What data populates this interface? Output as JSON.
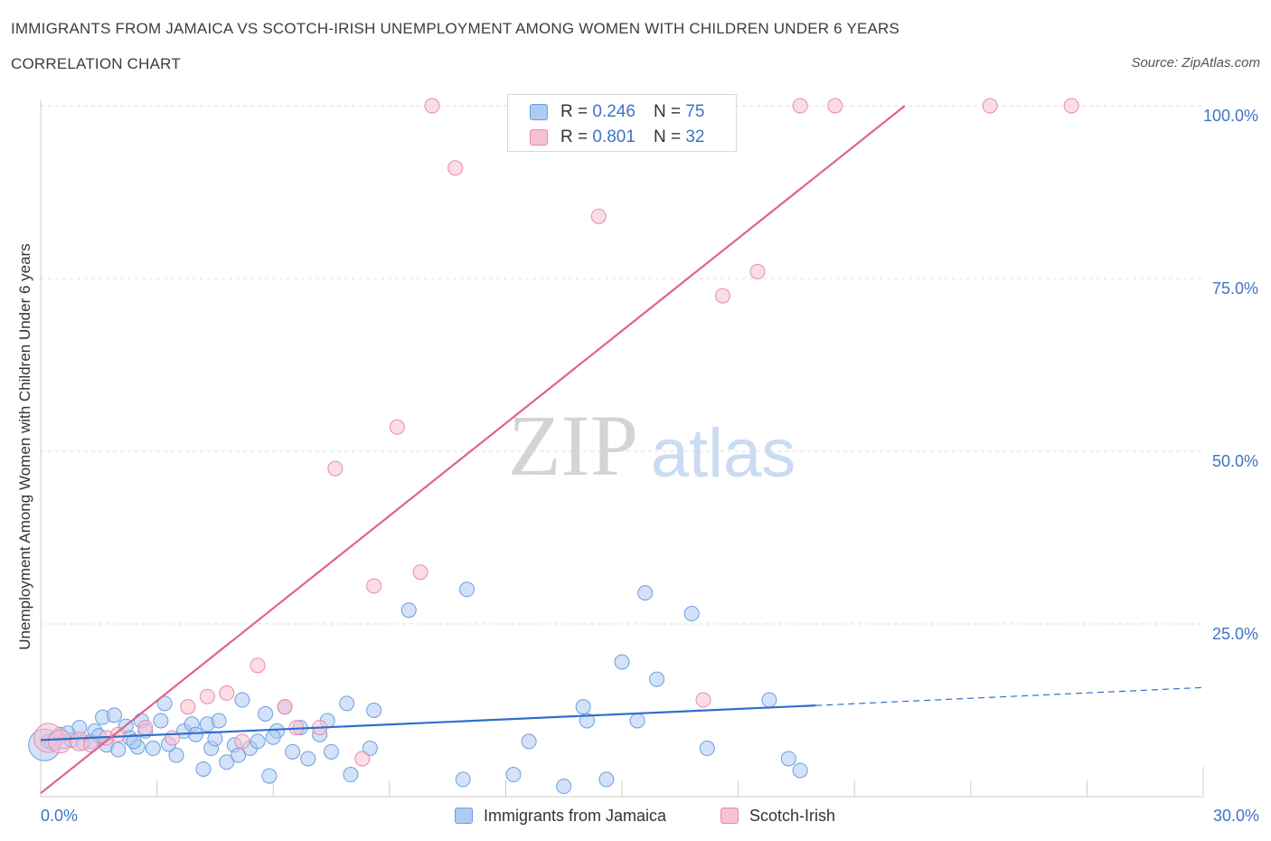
{
  "title": "IMMIGRANTS FROM JAMAICA VS SCOTCH-IRISH UNEMPLOYMENT AMONG WOMEN WITH CHILDREN UNDER 6 YEARS",
  "subtitle": "CORRELATION CHART",
  "source": "Source: ZipAtlas.com",
  "watermark": {
    "zip": "ZIP",
    "atlas": "atlas"
  },
  "colors": {
    "blue_fill": "#aecbf2",
    "blue_stroke": "#6a9fe0",
    "blue_line": "#2f6fcc",
    "pink_fill": "#f7c1d3",
    "pink_stroke": "#e88aab",
    "pink_line": "#e0628e",
    "axis_label": "#3d74c6",
    "grid": "#dddddd"
  },
  "legend_top": {
    "rows": [
      {
        "r_label": "R =",
        "r_value": "0.246",
        "n_label": "N =",
        "n_value": "75",
        "color": "blue"
      },
      {
        "r_label": "R =",
        "r_value": "0.801",
        "n_label": "N =",
        "n_value": "32",
        "color": "pink"
      }
    ]
  },
  "legend_bottom": [
    {
      "label": "Immigrants from Jamaica",
      "color": "blue"
    },
    {
      "label": "Scotch-Irish",
      "color": "pink"
    }
  ],
  "chart_data": {
    "type": "scatter",
    "ylabel": "Unemployment Among Women with Children Under 6 years",
    "x_tick_labels": [
      "0.0%",
      "30.0%"
    ],
    "y_tick_labels": [
      "25.0%",
      "50.0%",
      "75.0%",
      "100.0%"
    ],
    "xlim": [
      0,
      30
    ],
    "ylim": [
      0,
      100
    ],
    "y_gridlines": [
      25,
      50,
      75,
      100
    ],
    "legend_position": "top-center",
    "series": [
      {
        "name": "Immigrants from Jamaica",
        "color": "blue",
        "trend": {
          "x0": 0,
          "y0": 8.2,
          "x1": 20,
          "y1": 13.2,
          "dashed_to_x": 30,
          "dashed_to_y": 15.8
        },
        "points": [
          [
            0.1,
            7.5,
            2.2
          ],
          [
            0.3,
            7.8,
            1
          ],
          [
            0.4,
            8.5,
            1
          ],
          [
            0.5,
            9.0,
            1
          ],
          [
            0.6,
            8.0,
            1
          ],
          [
            0.8,
            8.2,
            1
          ],
          [
            1.0,
            10.0,
            1
          ],
          [
            1.1,
            7.8,
            1
          ],
          [
            1.3,
            8.0,
            1
          ],
          [
            1.4,
            9.5,
            1
          ],
          [
            1.6,
            11.5,
            1
          ],
          [
            1.7,
            7.5,
            1
          ],
          [
            1.9,
            11.8,
            1
          ],
          [
            2.0,
            6.8,
            1
          ],
          [
            2.2,
            10.2,
            1
          ],
          [
            2.3,
            8.5,
            1
          ],
          [
            2.5,
            7.2,
            1
          ],
          [
            2.6,
            11.0,
            1
          ],
          [
            2.7,
            9.5,
            1
          ],
          [
            2.9,
            7.0,
            1
          ],
          [
            3.1,
            11.0,
            1
          ],
          [
            3.2,
            13.5,
            1
          ],
          [
            3.5,
            6.0,
            1
          ],
          [
            3.7,
            9.5,
            1
          ],
          [
            3.9,
            10.5,
            1
          ],
          [
            4.0,
            9.0,
            1
          ],
          [
            4.2,
            4.0,
            1
          ],
          [
            4.3,
            10.5,
            1
          ],
          [
            4.4,
            7.0,
            1
          ],
          [
            4.6,
            11.0,
            1
          ],
          [
            4.8,
            5.0,
            1
          ],
          [
            5.0,
            7.5,
            1
          ],
          [
            5.1,
            6.0,
            1
          ],
          [
            5.2,
            14.0,
            1
          ],
          [
            5.4,
            7.0,
            1
          ],
          [
            5.6,
            8.0,
            1
          ],
          [
            5.8,
            12.0,
            1
          ],
          [
            5.9,
            3.0,
            1
          ],
          [
            6.1,
            9.5,
            1
          ],
          [
            6.3,
            13.0,
            1
          ],
          [
            6.5,
            6.5,
            1
          ],
          [
            6.7,
            10.0,
            1
          ],
          [
            6.9,
            5.5,
            1
          ],
          [
            7.2,
            9.0,
            1
          ],
          [
            7.4,
            11.0,
            1
          ],
          [
            7.5,
            6.5,
            1
          ],
          [
            7.9,
            13.5,
            1
          ],
          [
            8.0,
            3.2,
            1
          ],
          [
            8.5,
            7.0,
            1
          ],
          [
            8.6,
            12.5,
            1
          ],
          [
            9.5,
            27.0,
            1
          ],
          [
            10.9,
            2.5,
            1
          ],
          [
            11.0,
            30.0,
            1
          ],
          [
            12.2,
            3.2,
            1
          ],
          [
            12.6,
            8.0,
            1
          ],
          [
            13.5,
            1.5,
            1
          ],
          [
            14.0,
            13.0,
            1
          ],
          [
            14.1,
            11.0,
            1
          ],
          [
            14.6,
            2.5,
            1
          ],
          [
            15.0,
            19.5,
            1
          ],
          [
            15.4,
            11.0,
            1
          ],
          [
            15.9,
            17.0,
            1
          ],
          [
            15.6,
            29.5,
            1
          ],
          [
            16.8,
            26.5,
            1
          ],
          [
            17.2,
            7.0,
            1
          ],
          [
            18.8,
            14.0,
            1
          ],
          [
            19.3,
            5.5,
            1
          ],
          [
            19.6,
            3.8,
            1
          ],
          [
            0.2,
            8.0,
            1
          ],
          [
            0.7,
            9.2,
            1
          ],
          [
            1.5,
            8.8,
            1
          ],
          [
            2.4,
            8.0,
            1
          ],
          [
            3.3,
            7.6,
            1
          ],
          [
            4.5,
            8.4,
            1
          ],
          [
            6.0,
            8.6,
            1
          ]
        ]
      },
      {
        "name": "Scotch-Irish",
        "color": "pink",
        "trend": {
          "x0": 0,
          "y0": 0.5,
          "x1": 22.3,
          "y1": 100
        },
        "points": [
          [
            0.2,
            8.5,
            2.0
          ],
          [
            0.5,
            8.0,
            1.6
          ],
          [
            1.0,
            8.0,
            1.3
          ],
          [
            1.3,
            7.5,
            1
          ],
          [
            1.7,
            8.5,
            1
          ],
          [
            2.0,
            9.0,
            1
          ],
          [
            2.7,
            10.0,
            1
          ],
          [
            3.4,
            8.5,
            1
          ],
          [
            3.8,
            13.0,
            1
          ],
          [
            4.3,
            14.5,
            1
          ],
          [
            4.8,
            15.0,
            1
          ],
          [
            5.2,
            8.0,
            1
          ],
          [
            5.6,
            19.0,
            1
          ],
          [
            6.3,
            13.0,
            1
          ],
          [
            6.6,
            10.0,
            1
          ],
          [
            7.2,
            10.0,
            1
          ],
          [
            7.6,
            47.5,
            1
          ],
          [
            8.3,
            5.5,
            1
          ],
          [
            8.6,
            30.5,
            1
          ],
          [
            9.2,
            53.5,
            1
          ],
          [
            9.8,
            32.5,
            1
          ],
          [
            10.1,
            100,
            1
          ],
          [
            10.7,
            91.0,
            1
          ],
          [
            14.4,
            84.0,
            1
          ],
          [
            15.4,
            100,
            1
          ],
          [
            17.1,
            14.0,
            1
          ],
          [
            17.6,
            72.5,
            1
          ],
          [
            18.5,
            76.0,
            1
          ],
          [
            19.6,
            100,
            1
          ],
          [
            20.5,
            100,
            1
          ],
          [
            24.5,
            100,
            1
          ],
          [
            26.6,
            100,
            1
          ]
        ]
      }
    ]
  }
}
